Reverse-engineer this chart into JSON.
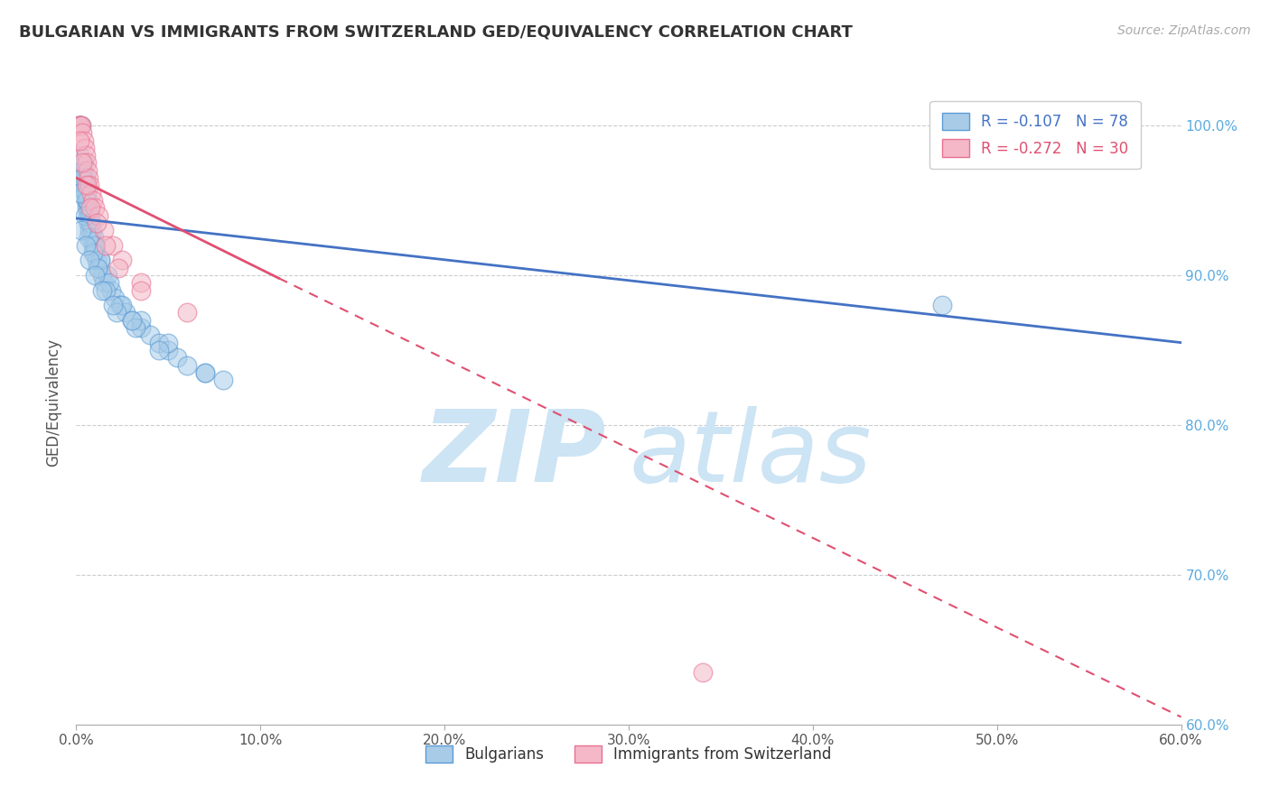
{
  "title": "BULGARIAN VS IMMIGRANTS FROM SWITZERLAND GED/EQUIVALENCY CORRELATION CHART",
  "source": "Source: ZipAtlas.com",
  "xlim": [
    0.0,
    60.0
  ],
  "ylim": [
    60.0,
    103.0
  ],
  "ylabel": "GED/Equivalency",
  "legend_blue_label": "Bulgarians",
  "legend_pink_label": "Immigrants from Switzerland",
  "r_blue": -0.107,
  "n_blue": 78,
  "r_pink": -0.272,
  "n_pink": 30,
  "blue_color": "#a8cce8",
  "pink_color": "#f4b8c8",
  "blue_edge_color": "#5b9bd5",
  "pink_edge_color": "#e87090",
  "blue_line_color": "#4472c4",
  "pink_line_color": "#e05070",
  "watermark_color": "#cce4f4",
  "background_color": "#ffffff",
  "blue_line_x0": 0.0,
  "blue_line_x1": 60.0,
  "blue_line_y0": 93.8,
  "blue_line_y1": 85.5,
  "pink_line_solid_x0": 0.0,
  "pink_line_solid_x1": 11.0,
  "pink_line_solid_y0": 96.5,
  "pink_line_solid_y1": 89.8,
  "pink_line_dash_x0": 11.0,
  "pink_line_dash_x1": 60.0,
  "pink_line_dash_y0": 89.8,
  "pink_line_dash_y1": 60.5,
  "blue_x": [
    0.15,
    0.18,
    0.22,
    0.25,
    0.28,
    0.3,
    0.32,
    0.35,
    0.38,
    0.4,
    0.42,
    0.45,
    0.48,
    0.5,
    0.52,
    0.55,
    0.58,
    0.6,
    0.62,
    0.65,
    0.68,
    0.7,
    0.72,
    0.75,
    0.78,
    0.8,
    0.85,
    0.9,
    0.95,
    1.0,
    1.05,
    1.1,
    1.2,
    1.3,
    1.4,
    1.5,
    1.7,
    1.9,
    2.1,
    2.4,
    2.7,
    3.0,
    3.5,
    4.0,
    4.5,
    5.0,
    5.5,
    6.0,
    7.0,
    8.0,
    0.2,
    0.35,
    0.55,
    0.75,
    1.0,
    1.3,
    1.8,
    2.5,
    3.5,
    5.0,
    0.25,
    0.45,
    0.65,
    0.9,
    1.15,
    1.6,
    2.2,
    3.2,
    4.5,
    7.0,
    0.3,
    0.5,
    0.7,
    1.0,
    1.4,
    2.0,
    3.0,
    47.0
  ],
  "blue_y": [
    100.0,
    100.0,
    100.0,
    100.0,
    100.0,
    97.0,
    97.0,
    97.0,
    96.5,
    97.5,
    96.0,
    96.0,
    95.5,
    96.5,
    95.0,
    95.5,
    94.5,
    95.0,
    94.0,
    94.5,
    93.5,
    94.0,
    93.0,
    93.5,
    94.0,
    92.5,
    93.0,
    92.0,
    92.5,
    91.5,
    92.0,
    91.0,
    90.5,
    91.0,
    90.0,
    89.5,
    90.0,
    89.0,
    88.5,
    88.0,
    87.5,
    87.0,
    86.5,
    86.0,
    85.5,
    85.0,
    84.5,
    84.0,
    83.5,
    83.0,
    98.0,
    96.5,
    95.0,
    93.5,
    92.0,
    91.0,
    89.5,
    88.0,
    87.0,
    85.5,
    95.5,
    94.0,
    92.5,
    91.5,
    90.5,
    89.0,
    87.5,
    86.5,
    85.0,
    83.5,
    93.0,
    92.0,
    91.0,
    90.0,
    89.0,
    88.0,
    87.0,
    88.0
  ],
  "pink_x": [
    0.15,
    0.2,
    0.25,
    0.3,
    0.35,
    0.4,
    0.45,
    0.5,
    0.55,
    0.6,
    0.65,
    0.7,
    0.8,
    0.9,
    1.0,
    1.2,
    1.5,
    2.0,
    2.5,
    3.5,
    0.2,
    0.35,
    0.55,
    0.75,
    1.1,
    1.6,
    2.3,
    3.5,
    6.0,
    34.0
  ],
  "pink_y": [
    100.0,
    100.0,
    100.0,
    100.0,
    99.5,
    99.0,
    98.5,
    98.0,
    97.5,
    97.0,
    96.5,
    96.0,
    95.5,
    95.0,
    94.5,
    94.0,
    93.0,
    92.0,
    91.0,
    89.5,
    99.0,
    97.5,
    96.0,
    94.5,
    93.5,
    92.0,
    90.5,
    89.0,
    87.5,
    63.5
  ]
}
